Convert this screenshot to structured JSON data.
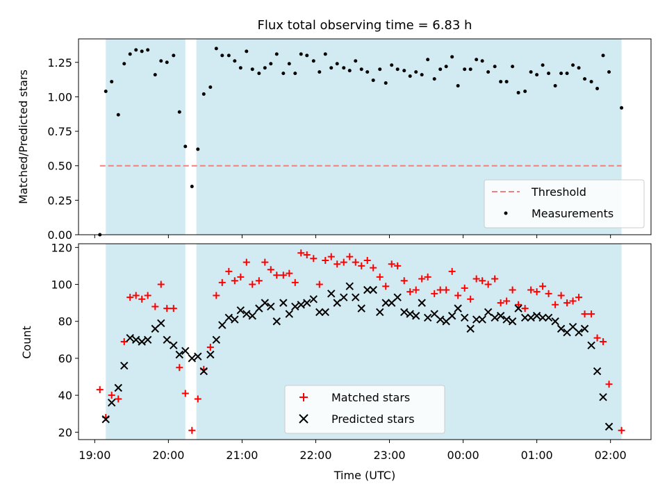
{
  "chart_data": {
    "title": "Flux total observing time = 6.83 h",
    "xlabel": "Time (UTC)",
    "x_ticks": [
      "19:00",
      "20:00",
      "21:00",
      "22:00",
      "23:00",
      "00:00",
      "01:00",
      "02:00"
    ],
    "x_tick_hours": [
      19,
      20,
      21,
      22,
      23,
      24,
      25,
      26
    ],
    "xlim_hours": [
      18.78,
      26.55
    ],
    "shaded_intervals_hours": [
      [
        19.15,
        20.23
      ],
      [
        20.38,
        26.15
      ]
    ],
    "shade_color": "#add8e6",
    "top_panel": {
      "type": "scatter",
      "ylabel": "Matched/Predicted stars",
      "ylim": [
        0,
        1.42
      ],
      "yticks": [
        0.0,
        0.25,
        0.5,
        0.75,
        1.0,
        1.25
      ],
      "ytick_labels": [
        "0.00",
        "0.25",
        "0.50",
        "0.75",
        "1.00",
        "1.25"
      ],
      "threshold": {
        "name": "Threshold",
        "value": 0.5,
        "x_range_hours": [
          19.07,
          26.15
        ],
        "color": "#f08080"
      },
      "measurements_name": "Measurements",
      "measurements_color": "#000000",
      "legend_position": "lower-right",
      "points": [
        [
          19.07,
          0.0
        ],
        [
          19.15,
          1.04
        ],
        [
          19.23,
          1.11
        ],
        [
          19.32,
          0.87
        ],
        [
          19.4,
          1.24
        ],
        [
          19.48,
          1.31
        ],
        [
          19.56,
          1.34
        ],
        [
          19.64,
          1.33
        ],
        [
          19.72,
          1.34
        ],
        [
          19.82,
          1.16
        ],
        [
          19.9,
          1.26
        ],
        [
          19.98,
          1.25
        ],
        [
          20.07,
          1.3
        ],
        [
          20.15,
          0.89
        ],
        [
          20.23,
          0.64
        ],
        [
          20.32,
          0.35
        ],
        [
          20.4,
          0.62
        ],
        [
          20.48,
          1.02
        ],
        [
          20.57,
          1.07
        ],
        [
          20.65,
          1.35
        ],
        [
          20.73,
          1.3
        ],
        [
          20.82,
          1.3
        ],
        [
          20.9,
          1.26
        ],
        [
          20.98,
          1.21
        ],
        [
          21.06,
          1.33
        ],
        [
          21.14,
          1.2
        ],
        [
          21.23,
          1.17
        ],
        [
          21.31,
          1.21
        ],
        [
          21.39,
          1.24
        ],
        [
          21.47,
          1.31
        ],
        [
          21.56,
          1.17
        ],
        [
          21.64,
          1.24
        ],
        [
          21.72,
          1.17
        ],
        [
          21.8,
          1.31
        ],
        [
          21.88,
          1.3
        ],
        [
          21.97,
          1.26
        ],
        [
          22.05,
          1.18
        ],
        [
          22.13,
          1.31
        ],
        [
          22.21,
          1.21
        ],
        [
          22.29,
          1.24
        ],
        [
          22.38,
          1.21
        ],
        [
          22.46,
          1.19
        ],
        [
          22.54,
          1.26
        ],
        [
          22.62,
          1.2
        ],
        [
          22.7,
          1.18
        ],
        [
          22.78,
          1.12
        ],
        [
          22.87,
          1.2
        ],
        [
          22.95,
          1.1
        ],
        [
          23.03,
          1.23
        ],
        [
          23.11,
          1.2
        ],
        [
          23.2,
          1.19
        ],
        [
          23.28,
          1.15
        ],
        [
          23.36,
          1.18
        ],
        [
          23.44,
          1.16
        ],
        [
          23.52,
          1.27
        ],
        [
          23.61,
          1.13
        ],
        [
          23.69,
          1.2
        ],
        [
          23.77,
          1.22
        ],
        [
          23.85,
          1.29
        ],
        [
          23.93,
          1.08
        ],
        [
          24.02,
          1.2
        ],
        [
          24.1,
          1.2
        ],
        [
          24.18,
          1.27
        ],
        [
          24.26,
          1.26
        ],
        [
          24.34,
          1.18
        ],
        [
          24.43,
          1.22
        ],
        [
          24.51,
          1.11
        ],
        [
          24.59,
          1.11
        ],
        [
          24.67,
          1.22
        ],
        [
          24.75,
          1.03
        ],
        [
          24.84,
          1.04
        ],
        [
          24.92,
          1.18
        ],
        [
          25.0,
          1.16
        ],
        [
          25.08,
          1.23
        ],
        [
          25.16,
          1.17
        ],
        [
          25.25,
          1.08
        ],
        [
          25.33,
          1.17
        ],
        [
          25.41,
          1.17
        ],
        [
          25.49,
          1.23
        ],
        [
          25.57,
          1.21
        ],
        [
          25.65,
          1.13
        ],
        [
          25.74,
          1.11
        ],
        [
          25.82,
          1.06
        ],
        [
          25.9,
          1.3
        ],
        [
          25.98,
          1.18
        ],
        [
          26.15,
          0.92
        ]
      ]
    },
    "bottom_panel": {
      "type": "scatter",
      "ylabel": "Count",
      "ylim": [
        16,
        122
      ],
      "yticks": [
        20,
        40,
        60,
        80,
        100,
        120
      ],
      "ytick_labels": [
        "20",
        "40",
        "60",
        "80",
        "100",
        "120"
      ],
      "legend_position": "lower-center",
      "series": [
        {
          "name": "Matched stars",
          "marker": "plus",
          "color": "#ff0000",
          "points": [
            [
              19.07,
              43
            ],
            [
              19.15,
              28
            ],
            [
              19.23,
              40
            ],
            [
              19.32,
              38
            ],
            [
              19.4,
              69
            ],
            [
              19.48,
              93
            ],
            [
              19.56,
              94
            ],
            [
              19.64,
              92
            ],
            [
              19.72,
              94
            ],
            [
              19.82,
              88
            ],
            [
              19.9,
              100
            ],
            [
              19.98,
              87
            ],
            [
              20.07,
              87
            ],
            [
              20.15,
              55
            ],
            [
              20.23,
              41
            ],
            [
              20.32,
              21
            ],
            [
              20.4,
              38
            ],
            [
              20.48,
              54
            ],
            [
              20.57,
              66
            ],
            [
              20.65,
              94
            ],
            [
              20.73,
              101
            ],
            [
              20.82,
              107
            ],
            [
              20.9,
              102
            ],
            [
              20.98,
              104
            ],
            [
              21.06,
              112
            ],
            [
              21.14,
              100
            ],
            [
              21.23,
              102
            ],
            [
              21.31,
              112
            ],
            [
              21.39,
              108
            ],
            [
              21.47,
              105
            ],
            [
              21.56,
              105
            ],
            [
              21.64,
              106
            ],
            [
              21.72,
              101
            ],
            [
              21.8,
              117
            ],
            [
              21.88,
              116
            ],
            [
              21.97,
              114
            ],
            [
              22.05,
              100
            ],
            [
              22.13,
              113
            ],
            [
              22.21,
              115
            ],
            [
              22.29,
              111
            ],
            [
              22.38,
              112
            ],
            [
              22.46,
              115
            ],
            [
              22.54,
              112
            ],
            [
              22.62,
              110
            ],
            [
              22.7,
              113
            ],
            [
              22.78,
              109
            ],
            [
              22.87,
              104
            ],
            [
              22.95,
              99
            ],
            [
              23.03,
              111
            ],
            [
              23.11,
              110
            ],
            [
              23.2,
              102
            ],
            [
              23.28,
              96
            ],
            [
              23.36,
              97
            ],
            [
              23.44,
              103
            ],
            [
              23.52,
              104
            ],
            [
              23.61,
              95
            ],
            [
              23.69,
              97
            ],
            [
              23.77,
              97
            ],
            [
              23.85,
              107
            ],
            [
              23.93,
              94
            ],
            [
              24.02,
              98
            ],
            [
              24.1,
              92
            ],
            [
              24.18,
              103
            ],
            [
              24.26,
              102
            ],
            [
              24.34,
              100
            ],
            [
              24.43,
              103
            ],
            [
              24.51,
              90
            ],
            [
              24.59,
              91
            ],
            [
              24.67,
              97
            ],
            [
              24.75,
              89
            ],
            [
              24.84,
              87
            ],
            [
              24.92,
              97
            ],
            [
              25.0,
              96
            ],
            [
              25.08,
              99
            ],
            [
              25.16,
              95
            ],
            [
              25.25,
              89
            ],
            [
              25.33,
              94
            ],
            [
              25.41,
              90
            ],
            [
              25.49,
              91
            ],
            [
              25.57,
              93
            ],
            [
              25.65,
              84
            ],
            [
              25.74,
              84
            ],
            [
              25.82,
              71
            ],
            [
              25.9,
              69
            ],
            [
              25.98,
              46
            ],
            [
              26.15,
              21
            ]
          ]
        },
        {
          "name": "Predicted stars",
          "marker": "x",
          "color": "#000000",
          "points": [
            [
              19.15,
              27
            ],
            [
              19.23,
              36
            ],
            [
              19.32,
              44
            ],
            [
              19.4,
              56
            ],
            [
              19.48,
              71
            ],
            [
              19.56,
              70
            ],
            [
              19.64,
              69
            ],
            [
              19.72,
              70
            ],
            [
              19.82,
              76
            ],
            [
              19.9,
              79
            ],
            [
              19.98,
              70
            ],
            [
              20.07,
              67
            ],
            [
              20.15,
              62
            ],
            [
              20.23,
              64
            ],
            [
              20.32,
              60
            ],
            [
              20.4,
              61
            ],
            [
              20.48,
              53
            ],
            [
              20.57,
              62
            ],
            [
              20.65,
              70
            ],
            [
              20.73,
              78
            ],
            [
              20.82,
              82
            ],
            [
              20.9,
              81
            ],
            [
              20.98,
              86
            ],
            [
              21.06,
              84
            ],
            [
              21.14,
              83
            ],
            [
              21.23,
              87
            ],
            [
              21.31,
              90
            ],
            [
              21.39,
              88
            ],
            [
              21.47,
              80
            ],
            [
              21.56,
              90
            ],
            [
              21.64,
              84
            ],
            [
              21.72,
              88
            ],
            [
              21.8,
              89
            ],
            [
              21.88,
              90
            ],
            [
              21.97,
              92
            ],
            [
              22.05,
              85
            ],
            [
              22.13,
              85
            ],
            [
              22.21,
              95
            ],
            [
              22.29,
              90
            ],
            [
              22.38,
              93
            ],
            [
              22.46,
              99
            ],
            [
              22.54,
              93
            ],
            [
              22.62,
              87
            ],
            [
              22.7,
              97
            ],
            [
              22.78,
              97
            ],
            [
              22.87,
              85
            ],
            [
              22.95,
              90
            ],
            [
              23.03,
              90
            ],
            [
              23.11,
              93
            ],
            [
              23.2,
              85
            ],
            [
              23.28,
              84
            ],
            [
              23.36,
              83
            ],
            [
              23.44,
              90
            ],
            [
              23.52,
              82
            ],
            [
              23.61,
              84
            ],
            [
              23.69,
              81
            ],
            [
              23.77,
              80
            ],
            [
              23.85,
              83
            ],
            [
              23.93,
              87
            ],
            [
              24.02,
              82
            ],
            [
              24.1,
              76
            ],
            [
              24.18,
              81
            ],
            [
              24.26,
              81
            ],
            [
              24.34,
              85
            ],
            [
              24.43,
              82
            ],
            [
              24.51,
              83
            ],
            [
              24.59,
              81
            ],
            [
              24.67,
              80
            ],
            [
              24.75,
              87
            ],
            [
              24.84,
              82
            ],
            [
              24.92,
              82
            ],
            [
              25.0,
              83
            ],
            [
              25.08,
              82
            ],
            [
              25.16,
              82
            ],
            [
              25.25,
              80
            ],
            [
              25.33,
              76
            ],
            [
              25.41,
              74
            ],
            [
              25.49,
              77
            ],
            [
              25.57,
              74
            ],
            [
              25.65,
              76
            ],
            [
              25.74,
              67
            ],
            [
              25.82,
              53
            ],
            [
              25.9,
              39
            ],
            [
              25.98,
              23
            ]
          ]
        }
      ]
    }
  }
}
